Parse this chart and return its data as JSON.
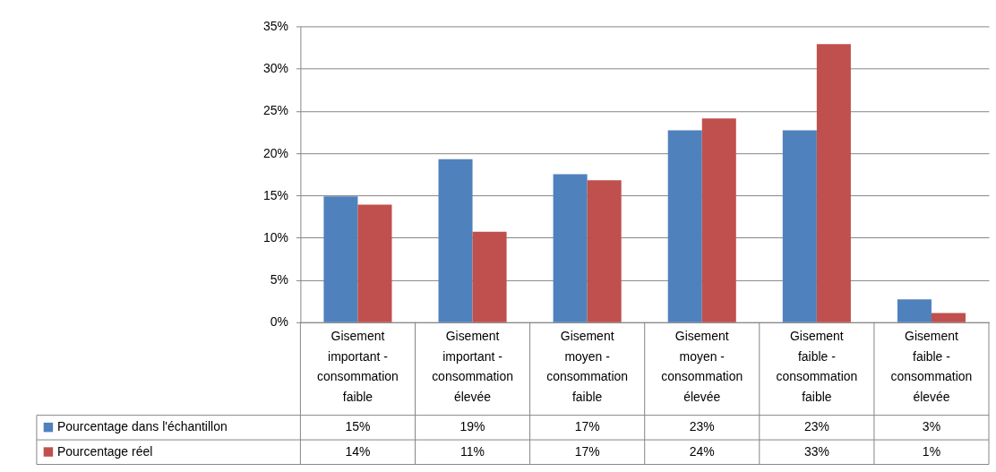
{
  "chart_data": {
    "type": "bar",
    "categories": [
      "Gisement important - consommation faible",
      "Gisement important - consommation élevée",
      "Gisement moyen - consommation faible",
      "Gisement moyen - consommation élevée",
      "Gisement faible - consommation faible",
      "Gisement faible - consommation élevée"
    ],
    "series": [
      {
        "name": "Pourcentage dans l'échantillon",
        "color": "#4f81bd",
        "values": [
          14.9,
          19.3,
          17.5,
          22.7,
          22.7,
          2.7
        ],
        "value_labels": [
          "15%",
          "19%",
          "17%",
          "23%",
          "23%",
          "3%"
        ]
      },
      {
        "name": "Pourcentage réel",
        "color": "#c0504d",
        "values": [
          13.9,
          10.7,
          16.8,
          24.1,
          32.9,
          1.1
        ],
        "value_labels": [
          "14%",
          "11%",
          "17%",
          "24%",
          "33%",
          "1%"
        ]
      }
    ],
    "ylim": [
      0,
      35
    ],
    "yticks": [
      {
        "value": 0,
        "label": "0%"
      },
      {
        "value": 5,
        "label": "5%"
      },
      {
        "value": 10,
        "label": "10%"
      },
      {
        "value": 15,
        "label": "15%"
      },
      {
        "value": 20,
        "label": "20%"
      },
      {
        "value": 25,
        "label": "25%"
      },
      {
        "value": 30,
        "label": "30%"
      },
      {
        "value": 35,
        "label": "35%"
      }
    ],
    "grid": "y",
    "legend": "bottom left"
  }
}
